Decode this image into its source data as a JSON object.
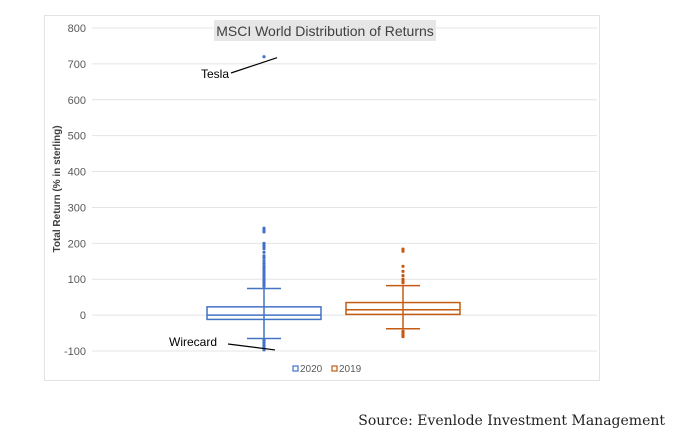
{
  "chart_data": {
    "type": "box",
    "title": "MSCI World Distribution of Returns",
    "ylabel": "Total Return (% in sterling)",
    "xlabel": "",
    "ylim": [
      -100,
      800
    ],
    "yticks": [
      800,
      700,
      600,
      500,
      400,
      300,
      200,
      100,
      0,
      -100
    ],
    "grid": true,
    "legend_position": "bottom",
    "series": [
      {
        "name": "2020",
        "color": "#4472c4",
        "whisker_low": -65,
        "q1": -12,
        "median": 0,
        "q3": 23,
        "whisker_high": 74,
        "outliers": [
          720,
          242,
          237,
          232,
          200,
          195,
          190,
          185,
          175,
          165,
          160,
          152,
          145,
          138,
          132,
          126,
          120,
          114,
          108,
          102,
          96,
          90,
          85,
          80,
          -70,
          -75,
          -80,
          -85,
          -90,
          -97
        ]
      },
      {
        "name": "2019",
        "color": "#c55a11",
        "whisker_low": -38,
        "q1": 2,
        "median": 15,
        "q3": 35,
        "whisker_high": 82,
        "outliers": [
          184,
          178,
          136,
          122,
          110,
          100,
          95,
          90,
          -45,
          -50,
          -55,
          -60
        ]
      }
    ],
    "annotations": [
      {
        "text": "Tesla",
        "value": 720,
        "series": "2020"
      },
      {
        "text": "Wirecard",
        "value": -97,
        "series": "2020"
      }
    ]
  },
  "footer": {
    "source": "Source: Evenlode Investment Management"
  }
}
